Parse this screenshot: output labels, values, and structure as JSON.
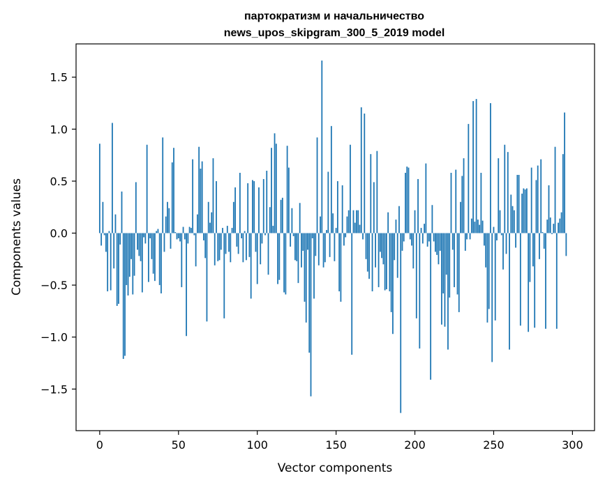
{
  "chart_data": {
    "type": "bar",
    "title_lines": [
      "партократизм и начальничество",
      "news_upos_skipgram_300_5_2019 model"
    ],
    "xlabel": "Vector components",
    "ylabel": "Components values",
    "xlim": [
      -15,
      314
    ],
    "ylim": [
      -1.9,
      1.82
    ],
    "x_ticks": [
      0,
      50,
      100,
      150,
      200,
      250,
      300
    ],
    "y_ticks": [
      -1.5,
      -1.0,
      -0.5,
      0.0,
      0.5,
      1.0,
      1.5
    ],
    "y_tick_labels": [
      "−1.5",
      "−1.0",
      "−0.5",
      "0.0",
      "0.5",
      "1.0",
      "1.5"
    ],
    "grid": false,
    "bar_color": "#1f77b4",
    "values": [
      0.86,
      -0.12,
      0.3,
      -0.02,
      -0.18,
      -0.56,
      0.02,
      -0.55,
      1.06,
      -0.34,
      0.18,
      -0.7,
      -0.68,
      -0.11,
      0.4,
      -1.21,
      -1.18,
      -0.5,
      -0.6,
      -0.42,
      -0.25,
      -0.59,
      -0.41,
      0.49,
      -0.16,
      -0.22,
      -0.27,
      -0.57,
      -0.04,
      -0.1,
      0.85,
      -0.47,
      -0.05,
      -0.25,
      -0.39,
      -0.46,
      0.02,
      0.04,
      -0.5,
      -0.58,
      0.92,
      -0.18,
      0.16,
      0.3,
      0.24,
      -0.15,
      0.68,
      0.82,
      0.01,
      -0.06,
      -0.05,
      -0.08,
      -0.52,
      0.06,
      -0.06,
      -0.99,
      -0.1,
      0.06,
      0.05,
      0.71,
      -0.02,
      -0.32,
      0.18,
      0.83,
      0.62,
      0.69,
      -0.07,
      -0.24,
      -0.85,
      0.3,
      0.1,
      0.2,
      0.72,
      -0.31,
      0.5,
      -0.27,
      -0.26,
      -0.16,
      0.05,
      -0.82,
      -0.2,
      0.07,
      -0.18,
      -0.28,
      0.05,
      0.3,
      0.44,
      -0.13,
      -0.2,
      0.58,
      -0.05,
      -0.28,
      0.02,
      -0.26,
      0.48,
      -0.23,
      -0.63,
      0.51,
      0.5,
      -0.18,
      -0.49,
      0.44,
      -0.3,
      -0.1,
      0.52,
      -0.02,
      0.6,
      -0.4,
      0.25,
      0.82,
      0.07,
      0.96,
      0.86,
      -0.49,
      -0.45,
      0.32,
      0.34,
      -0.57,
      -0.59,
      0.84,
      0.63,
      -0.13,
      0.24,
      -0.03,
      -0.26,
      -0.27,
      -0.48,
      0.29,
      -0.33,
      -0.17,
      -0.66,
      -0.86,
      -0.16,
      -1.15,
      -1.57,
      -0.05,
      -0.63,
      -0.22,
      0.92,
      -0.31,
      0.16,
      1.66,
      -0.33,
      -0.28,
      0.03,
      0.59,
      -0.23,
      1.03,
      0.19,
      -0.27,
      0.05,
      0.5,
      -0.56,
      -0.66,
      0.46,
      -0.12,
      -0.04,
      0.16,
      0.22,
      0.85,
      -1.17,
      0.22,
      0.1,
      0.22,
      0.22,
      0.08,
      1.21,
      -0.06,
      1.15,
      -0.25,
      -0.37,
      -0.44,
      0.76,
      -0.56,
      0.49,
      -0.33,
      0.79,
      -0.52,
      -0.18,
      -0.24,
      -0.3,
      -0.55,
      -0.54,
      0.2,
      -0.56,
      -0.76,
      -0.97,
      -0.26,
      0.13,
      -0.43,
      0.26,
      -1.73,
      -0.17,
      -0.08,
      0.58,
      0.64,
      0.63,
      -0.06,
      -0.12,
      -0.34,
      0.22,
      -0.82,
      0.52,
      -1.11,
      0.05,
      -0.1,
      0.09,
      0.67,
      -0.13,
      -0.08,
      -1.41,
      0.27,
      -0.08,
      -0.18,
      -0.21,
      -0.3,
      -0.17,
      -0.88,
      -0.58,
      -0.9,
      -0.4,
      -1.12,
      -0.62,
      0.58,
      -0.16,
      -0.52,
      0.61,
      -0.59,
      -0.76,
      0.3,
      0.55,
      0.72,
      -0.17,
      -0.06,
      1.05,
      -0.06,
      0.14,
      1.27,
      0.11,
      1.29,
      0.13,
      0.08,
      0.58,
      0.12,
      -0.12,
      -0.33,
      -0.86,
      -0.73,
      1.25,
      -1.24,
      0.06,
      -0.84,
      -0.07,
      0.72,
      0.22,
      -0.02,
      -0.35,
      0.85,
      -0.2,
      0.78,
      -1.12,
      0.37,
      0.26,
      0.22,
      -0.14,
      0.56,
      0.56,
      -0.89,
      0.38,
      0.43,
      0.42,
      0.43,
      -0.95,
      -0.47,
      0.63,
      -0.32,
      -0.91,
      0.51,
      0.65,
      -0.25,
      0.71,
      0.01,
      -0.15,
      -0.92,
      0.13,
      0.46,
      0.15,
      -0.01,
      0.09,
      0.83,
      -0.92,
      0.1,
      0.14,
      0.2,
      0.76,
      1.16,
      -0.22
    ]
  }
}
